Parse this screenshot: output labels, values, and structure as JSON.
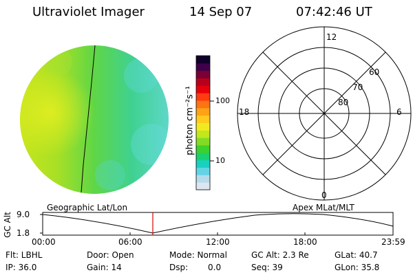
{
  "header": {
    "instrument": "Ultraviolet Imager",
    "date": "14 Sep 07",
    "time": "07:42:46 UT"
  },
  "colorbar": {
    "label": "photon cm⁻²s⁻¹",
    "ticks": [
      "100",
      "10"
    ],
    "colors": [
      "#dde6ef",
      "#b5dbeb",
      "#64d3e6",
      "#19d1c1",
      "#1bd06f",
      "#3cd12b",
      "#82dc23",
      "#c1e81b",
      "#f2ea20",
      "#ffcb1c",
      "#ffa316",
      "#ff7313",
      "#ff3b10",
      "#e6000c",
      "#b8001c",
      "#7a0036",
      "#3f0049",
      "#10002b"
    ]
  },
  "polar": {
    "mlt_labels": {
      "top": "12",
      "left": "18",
      "right": "6",
      "bottom": "0"
    },
    "lat_labels": [
      "60",
      "70",
      "80"
    ]
  },
  "timeline": {
    "left_label": "Geographic Lat/Lon",
    "right_label": "Apex MLat/MLT",
    "y_axis_label": "GC Alt",
    "y_ticks": [
      "9.0",
      "1.8"
    ],
    "x_ticks": [
      "00:00",
      "06:00",
      "12:00",
      "18:00",
      "23:59"
    ],
    "marker_color": "#d40000",
    "marker_time": "07:42:46"
  },
  "status": {
    "flt": "Flt: LBHL",
    "ip": "IP: 36.0",
    "door": "Door: Open",
    "gain": "Gain: 14",
    "mode": "Mode: Normal",
    "dsp_label": "Dsp:",
    "dsp_value": "0.0",
    "gc_alt": "GC Alt: 2.3 Re",
    "seq": "Seq: 39",
    "glat": "GLat: 40.7",
    "glon": "GLon: 35.8"
  }
}
